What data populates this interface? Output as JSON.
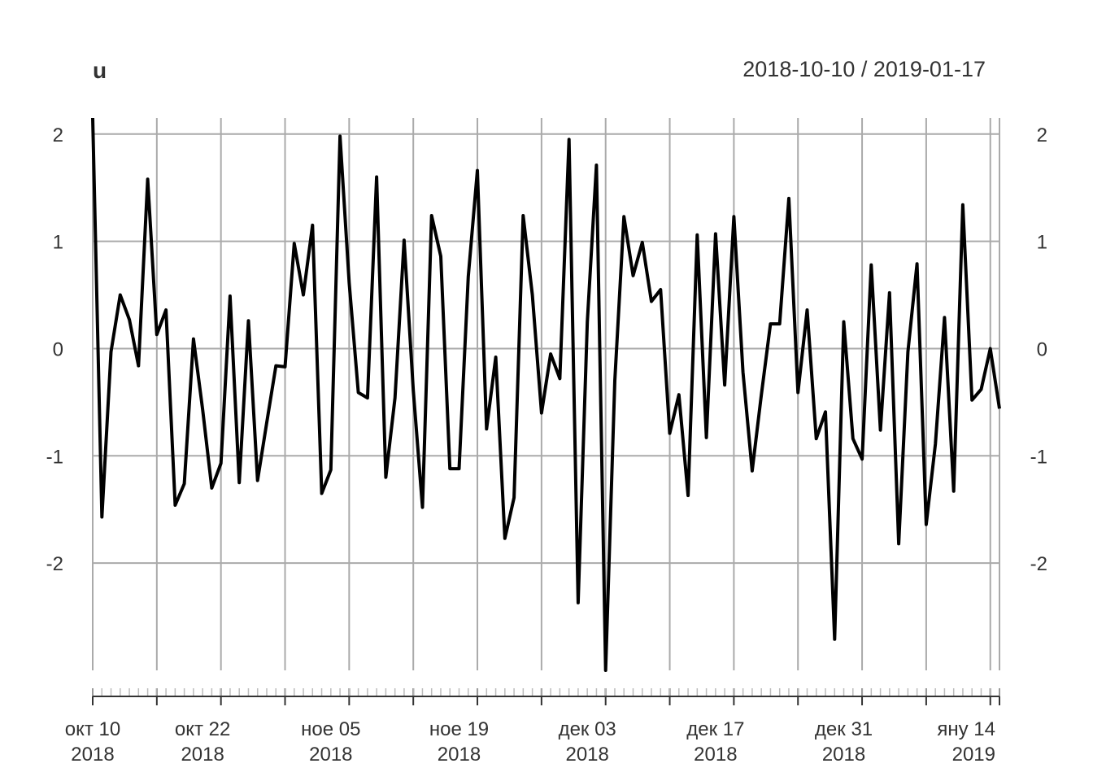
{
  "chart_data": {
    "type": "line",
    "title": "u",
    "date_range": "2018-10-10 / 2019-01-17",
    "x": [
      "2018-10-10",
      "2018-10-11",
      "2018-10-12",
      "2018-10-13",
      "2018-10-14",
      "2018-10-15",
      "2018-10-16",
      "2018-10-17",
      "2018-10-18",
      "2018-10-19",
      "2018-10-20",
      "2018-10-21",
      "2018-10-22",
      "2018-10-23",
      "2018-10-24",
      "2018-10-25",
      "2018-10-26",
      "2018-10-27",
      "2018-10-28",
      "2018-10-29",
      "2018-10-30",
      "2018-10-31",
      "2018-11-01",
      "2018-11-02",
      "2018-11-03",
      "2018-11-04",
      "2018-11-05",
      "2018-11-06",
      "2018-11-07",
      "2018-11-08",
      "2018-11-09",
      "2018-11-10",
      "2018-11-11",
      "2018-11-12",
      "2018-11-13",
      "2018-11-14",
      "2018-11-15",
      "2018-11-16",
      "2018-11-17",
      "2018-11-18",
      "2018-11-19",
      "2018-11-20",
      "2018-11-21",
      "2018-11-22",
      "2018-11-23",
      "2018-11-24",
      "2018-11-25",
      "2018-11-26",
      "2018-11-27",
      "2018-11-28",
      "2018-11-29",
      "2018-11-30",
      "2018-12-01",
      "2018-12-02",
      "2018-12-03",
      "2018-12-04",
      "2018-12-05",
      "2018-12-06",
      "2018-12-07",
      "2018-12-08",
      "2018-12-09",
      "2018-12-10",
      "2018-12-11",
      "2018-12-12",
      "2018-12-13",
      "2018-12-14",
      "2018-12-15",
      "2018-12-16",
      "2018-12-17",
      "2018-12-18",
      "2018-12-19",
      "2018-12-20",
      "2018-12-21",
      "2018-12-22",
      "2018-12-23",
      "2018-12-24",
      "2018-12-25",
      "2018-12-26",
      "2018-12-27",
      "2018-12-28",
      "2018-12-29",
      "2018-12-30",
      "2018-12-31",
      "2019-01-01",
      "2019-01-02",
      "2019-01-03",
      "2019-01-04",
      "2019-01-05",
      "2019-01-06",
      "2019-01-07",
      "2019-01-08",
      "2019-01-09",
      "2019-01-10",
      "2019-01-11",
      "2019-01-12",
      "2019-01-13",
      "2019-01-14",
      "2019-01-15",
      "2019-01-16",
      "2019-01-17"
    ],
    "series": [
      {
        "values": [
          2.15,
          -1.57,
          -0.03,
          0.5,
          0.27,
          -0.16,
          1.58,
          0.13,
          0.36,
          -1.46,
          -1.26,
          0.09,
          -0.57,
          -1.3,
          -1.07,
          0.49,
          -1.25,
          0.26,
          -1.23,
          -0.69,
          -0.16,
          -0.17,
          0.98,
          0.5,
          1.15,
          -1.35,
          -1.13,
          1.98,
          0.61,
          -0.41,
          -0.46,
          1.6,
          -1.2,
          -0.46,
          1.01,
          -0.39,
          -1.48,
          1.24,
          0.86,
          -1.12,
          -1.12,
          0.67,
          1.66,
          -0.75,
          -0.08,
          -1.77,
          -1.39,
          1.24,
          0.5,
          -0.6,
          -0.05,
          -0.28,
          1.95,
          -2.37,
          0.25,
          1.71,
          -3.0,
          -0.3,
          1.23,
          0.68,
          0.99,
          0.44,
          0.55,
          -0.79,
          -0.43,
          -1.37,
          1.06,
          -0.83,
          1.07,
          -0.34,
          1.23,
          -0.22,
          -1.14,
          -0.43,
          0.23,
          0.23,
          1.4,
          -0.41,
          0.36,
          -0.84,
          -0.59,
          -2.71,
          0.25,
          -0.84,
          -1.03,
          0.78,
          -0.76,
          0.52,
          -1.82,
          -0.03,
          0.79,
          -1.64,
          -0.89,
          0.29,
          -1.33,
          1.34,
          -0.48,
          -0.38,
          0.0,
          -0.56
        ]
      }
    ],
    "ylim": [
      -3.0,
      2.15
    ],
    "y_ticks": [
      2,
      1,
      0,
      -1,
      -2
    ],
    "y_tick_labels": [
      "2",
      "1",
      "0",
      "-1",
      "-2"
    ],
    "x_ticks": [
      {
        "date": "2018-10-10",
        "label1": "окт 10",
        "label2": "2018"
      },
      {
        "date": "2018-10-22",
        "label1": "окт 22",
        "label2": "2018"
      },
      {
        "date": "2018-11-05",
        "label1": "ное 05",
        "label2": "2018"
      },
      {
        "date": "2018-11-19",
        "label1": "ное 19",
        "label2": "2018"
      },
      {
        "date": "2018-12-03",
        "label1": "дек 03",
        "label2": "2018"
      },
      {
        "date": "2018-12-17",
        "label1": "дек 17",
        "label2": "2018"
      },
      {
        "date": "2018-12-31",
        "label1": "дек 31",
        "label2": "2018"
      },
      {
        "date": "2019-01-14",
        "label1": "яну 14",
        "label2": "2019"
      }
    ],
    "grid": true,
    "line_color": "#000000",
    "grid_color": "#aaaaaa"
  }
}
